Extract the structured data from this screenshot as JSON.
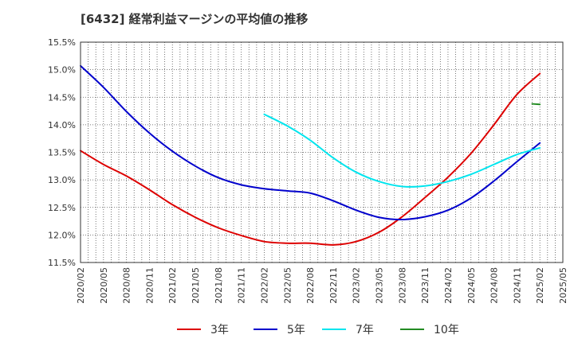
{
  "chart_data": {
    "type": "line",
    "title": "[6432]  経常利益マージンの平均値の推移",
    "ylim": [
      11.5,
      15.5
    ],
    "y_ticks": [
      "11.5%",
      "12.0%",
      "12.5%",
      "13.0%",
      "13.5%",
      "14.0%",
      "14.5%",
      "15.0%",
      "15.5%"
    ],
    "y_tick_values": [
      11.5,
      12.0,
      12.5,
      13.0,
      13.5,
      14.0,
      14.5,
      15.0,
      15.5
    ],
    "x_ticks": [
      "2020/02",
      "2020/05",
      "2020/08",
      "2020/11",
      "2021/02",
      "2021/05",
      "2021/08",
      "2021/11",
      "2022/02",
      "2022/05",
      "2022/08",
      "2022/11",
      "2023/02",
      "2023/05",
      "2023/08",
      "2023/11",
      "2024/02",
      "2024/05",
      "2024/08",
      "2024/11",
      "2025/02",
      "2025/05"
    ],
    "grid": true,
    "legend_position": "bottom",
    "series": [
      {
        "name": "3年",
        "color": "#dd0000",
        "points": [
          [
            "2020/02",
            13.53
          ],
          [
            "2020/05",
            13.28
          ],
          [
            "2020/08",
            13.07
          ],
          [
            "2020/11",
            12.82
          ],
          [
            "2021/02",
            12.55
          ],
          [
            "2021/05",
            12.32
          ],
          [
            "2021/08",
            12.13
          ],
          [
            "2021/11",
            11.99
          ],
          [
            "2022/02",
            11.88
          ],
          [
            "2022/05",
            11.85
          ],
          [
            "2022/08",
            11.85
          ],
          [
            "2022/11",
            11.82
          ],
          [
            "2023/02",
            11.88
          ],
          [
            "2023/05",
            12.05
          ],
          [
            "2023/08",
            12.33
          ],
          [
            "2023/11",
            12.68
          ],
          [
            "2024/02",
            13.05
          ],
          [
            "2024/05",
            13.48
          ],
          [
            "2024/08",
            14.0
          ],
          [
            "2024/11",
            14.55
          ],
          [
            "2025/02",
            14.93
          ]
        ]
      },
      {
        "name": "5年",
        "color": "#0000cc",
        "points": [
          [
            "2020/02",
            15.07
          ],
          [
            "2020/05",
            14.68
          ],
          [
            "2020/08",
            14.24
          ],
          [
            "2020/11",
            13.85
          ],
          [
            "2021/02",
            13.52
          ],
          [
            "2021/05",
            13.25
          ],
          [
            "2021/08",
            13.04
          ],
          [
            "2021/11",
            12.91
          ],
          [
            "2022/02",
            12.84
          ],
          [
            "2022/05",
            12.8
          ],
          [
            "2022/08",
            12.76
          ],
          [
            "2022/11",
            12.62
          ],
          [
            "2023/02",
            12.45
          ],
          [
            "2023/05",
            12.32
          ],
          [
            "2023/08",
            12.28
          ],
          [
            "2023/11",
            12.33
          ],
          [
            "2024/02",
            12.45
          ],
          [
            "2024/05",
            12.67
          ],
          [
            "2024/08",
            12.98
          ],
          [
            "2024/11",
            13.33
          ],
          [
            "2025/02",
            13.67
          ]
        ]
      },
      {
        "name": "7年",
        "color": "#00e5ee",
        "points": [
          [
            "2022/02",
            14.19
          ],
          [
            "2022/05",
            13.98
          ],
          [
            "2022/08",
            13.72
          ],
          [
            "2022/11",
            13.4
          ],
          [
            "2023/02",
            13.14
          ],
          [
            "2023/05",
            12.97
          ],
          [
            "2023/08",
            12.88
          ],
          [
            "2023/11",
            12.89
          ],
          [
            "2024/02",
            12.97
          ],
          [
            "2024/05",
            13.1
          ],
          [
            "2024/08",
            13.28
          ],
          [
            "2024/11",
            13.46
          ],
          [
            "2025/02",
            13.58
          ]
        ]
      },
      {
        "name": "10年",
        "color": "#228b22",
        "points": [
          [
            "2025/01",
            14.38
          ],
          [
            "2025/02",
            14.37
          ]
        ]
      }
    ]
  }
}
